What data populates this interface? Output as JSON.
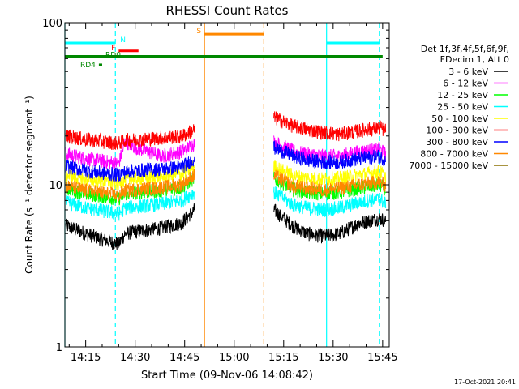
{
  "chart_data": {
    "type": "line",
    "title": "RHESSI Count Rates",
    "xlabel": "Start Time (09-Nov-06 14:08:42)",
    "ylabel": "Count Rate (s⁻¹ detector segment⁻¹)",
    "y_scale": "log",
    "ylim": [
      1,
      100
    ],
    "xlim": [
      "14:08:42",
      "15:47:00"
    ],
    "x_ticks": [
      "14:15",
      "14:30",
      "14:45",
      "15:00",
      "15:15",
      "15:30",
      "15:45"
    ],
    "y_ticks": [
      "1",
      "10",
      "100"
    ],
    "timestamp": "17-Oct-2021 20:41",
    "legend": {
      "placement": "right",
      "header": [
        "Det 1f,3f,4f,5f,6f,9f,",
        "FDecim 1, Att 0"
      ]
    },
    "series": [
      {
        "name": "3 - 6 keV",
        "color": "#000000",
        "segments": [
          {
            "x": [
              "14:09",
              "14:15",
              "14:20",
              "14:25",
              "14:27",
              "14:32",
              "14:38",
              "14:44",
              "14:48"
            ],
            "y": [
              5.6,
              5.0,
              4.6,
              4.3,
              5.0,
              5.2,
              5.4,
              5.8,
              7.0
            ]
          },
          {
            "x": [
              "15:12",
              "15:18",
              "15:22",
              "15:27",
              "15:32",
              "15:38",
              "15:44",
              "15:46"
            ],
            "y": [
              7.0,
              5.5,
              5.0,
              4.8,
              5.0,
              5.8,
              6.2,
              6.0
            ]
          }
        ]
      },
      {
        "name": "6 - 12 keV",
        "color": "#ff00ff",
        "segments": [
          {
            "x": [
              "14:09",
              "14:15",
              "14:20",
              "14:25",
              "14:27",
              "14:30",
              "14:38",
              "14:44",
              "14:48"
            ],
            "y": [
              15.5,
              14.5,
              14.0,
              13.5,
              18.5,
              17.0,
              15.0,
              16.0,
              18.0
            ]
          },
          {
            "x": [
              "15:12",
              "15:18",
              "15:22",
              "15:27",
              "15:32",
              "15:38",
              "15:44",
              "15:46"
            ],
            "y": [
              18.5,
              16.0,
              15.5,
              15.0,
              15.0,
              16.0,
              16.5,
              15.5
            ]
          }
        ]
      },
      {
        "name": "12 - 25 keV",
        "color": "#00ff00",
        "segments": [
          {
            "x": [
              "14:09",
              "14:15",
              "14:20",
              "14:25",
              "14:27",
              "14:32",
              "14:38",
              "14:44",
              "14:48"
            ],
            "y": [
              9.5,
              8.8,
              8.5,
              8.2,
              8.8,
              9.0,
              9.2,
              9.6,
              11.0
            ]
          },
          {
            "x": [
              "15:12",
              "15:18",
              "15:22",
              "15:27",
              "15:32",
              "15:38",
              "15:44",
              "15:46"
            ],
            "y": [
              11.0,
              9.3,
              9.0,
              8.8,
              9.0,
              9.5,
              10.0,
              9.4
            ]
          }
        ]
      },
      {
        "name": "25 - 50 keV",
        "color": "#00ffff",
        "segments": [
          {
            "x": [
              "14:09",
              "14:15",
              "14:20",
              "14:25",
              "14:27",
              "14:32",
              "14:38",
              "14:44",
              "14:48"
            ],
            "y": [
              7.8,
              7.2,
              6.9,
              6.6,
              7.2,
              7.4,
              7.6,
              8.0,
              9.0
            ]
          },
          {
            "x": [
              "15:12",
              "15:18",
              "15:22",
              "15:27",
              "15:32",
              "15:38",
              "15:44",
              "15:46"
            ],
            "y": [
              9.0,
              7.5,
              7.2,
              7.0,
              7.2,
              7.8,
              8.2,
              7.6
            ]
          }
        ]
      },
      {
        "name": "50 - 100 keV",
        "color": "#ffff00",
        "segments": [
          {
            "x": [
              "14:09",
              "14:15",
              "14:20",
              "14:25",
              "14:27",
              "14:32",
              "14:38",
              "14:44",
              "14:48"
            ],
            "y": [
              11.5,
              10.8,
              10.5,
              10.2,
              10.8,
              11.0,
              11.2,
              11.6,
              13.0
            ]
          },
          {
            "x": [
              "15:12",
              "15:18",
              "15:22",
              "15:27",
              "15:32",
              "15:38",
              "15:44",
              "15:46"
            ],
            "y": [
              13.0,
              11.3,
              11.0,
              10.8,
              11.0,
              11.5,
              12.0,
              11.4
            ]
          }
        ]
      },
      {
        "name": "100 - 300 keV",
        "color": "#ff0000",
        "segments": [
          {
            "x": [
              "14:09",
              "14:15",
              "14:20",
              "14:25",
              "14:27",
              "14:32",
              "14:38",
              "14:44",
              "14:48"
            ],
            "y": [
              20.0,
              19.0,
              18.5,
              18.0,
              18.8,
              19.0,
              19.5,
              19.8,
              22.0
            ]
          },
          {
            "x": [
              "15:12",
              "15:18",
              "15:22",
              "15:27",
              "15:32",
              "15:38",
              "15:44",
              "15:46"
            ],
            "y": [
              26.0,
              23.0,
              22.0,
              21.0,
              20.5,
              21.5,
              22.5,
              21.5
            ]
          }
        ]
      },
      {
        "name": "300 - 800 keV",
        "color": "#0000ff",
        "segments": [
          {
            "x": [
              "14:09",
              "14:15",
              "14:20",
              "14:25",
              "14:27",
              "14:32",
              "14:38",
              "14:44",
              "14:48"
            ],
            "y": [
              13.0,
              12.2,
              11.8,
              11.5,
              12.0,
              12.3,
              12.5,
              12.8,
              14.5
            ]
          },
          {
            "x": [
              "15:12",
              "15:18",
              "15:22",
              "15:27",
              "15:32",
              "15:38",
              "15:44",
              "15:46"
            ],
            "y": [
              17.0,
              15.0,
              14.2,
              13.8,
              13.8,
              14.5,
              15.0,
              14.2
            ]
          }
        ]
      },
      {
        "name": "800 - 7000 keV",
        "color": "#ff8800",
        "segments": [
          {
            "x": [
              "14:09",
              "14:15",
              "14:20",
              "14:25",
              "14:27",
              "14:32",
              "14:38",
              "14:44",
              "14:48"
            ],
            "y": [
              9.8,
              9.2,
              8.9,
              8.6,
              9.2,
              9.4,
              9.6,
              10.0,
              11.5
            ]
          },
          {
            "x": [
              "15:12",
              "15:18",
              "15:22",
              "15:27",
              "15:32",
              "15:38",
              "15:44",
              "15:46"
            ],
            "y": [
              11.5,
              9.8,
              9.5,
              9.3,
              9.5,
              10.0,
              10.4,
              9.8
            ]
          }
        ]
      },
      {
        "name": "7000 - 15000 keV",
        "color": "#8b7000",
        "segments": []
      }
    ],
    "flags": [
      {
        "label": "N",
        "color": "#00ffff",
        "y": 75,
        "x": [
          [
            "14:08:42",
            "14:24"
          ],
          [
            "15:28",
            "15:44"
          ]
        ]
      },
      {
        "label": "F",
        "color": "#ff0000",
        "y": 67,
        "x": [
          [
            "14:25",
            "14:31"
          ]
        ]
      },
      {
        "label": "S",
        "color": "#ff8800",
        "y": 85,
        "x": [
          [
            "14:51",
            "15:09"
          ]
        ]
      },
      {
        "label": "RD0",
        "color": "#008800",
        "y": 62,
        "x": [
          [
            "14:08:42",
            "15:45"
          ]
        ]
      },
      {
        "label": "RD4",
        "color": "#008800",
        "y": 55,
        "x": [
          [
            "14:19",
            "14:20"
          ]
        ]
      }
    ],
    "vlines": [
      {
        "x": "14:24",
        "color": "#00ffff",
        "style": "dashed"
      },
      {
        "x": "14:51",
        "color": "#ff8800",
        "style": "solid"
      },
      {
        "x": "15:09",
        "color": "#ff8800",
        "style": "dashed"
      },
      {
        "x": "15:28",
        "color": "#00ffff",
        "style": "solid"
      },
      {
        "x": "15:44",
        "color": "#00ffff",
        "style": "dashed"
      },
      {
        "x": "14:08:42",
        "color": "#00ffff",
        "style": "solid"
      }
    ]
  }
}
